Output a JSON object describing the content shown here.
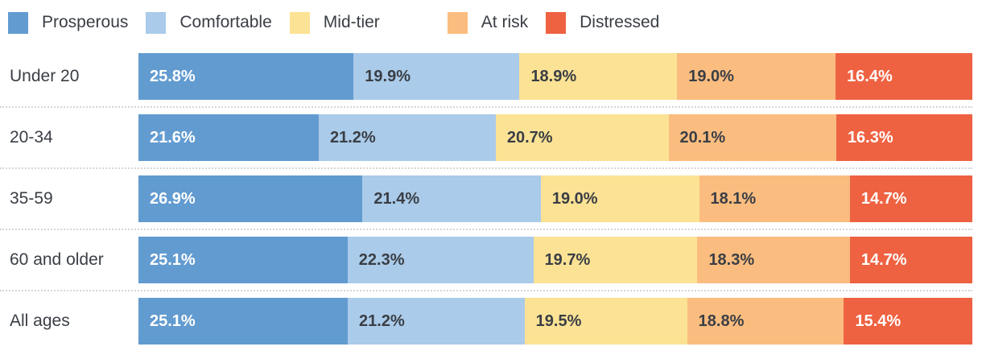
{
  "chart_data": {
    "type": "bar",
    "subtype": "stacked-horizontal-100pct",
    "title": "",
    "xlabel": "",
    "ylabel": "",
    "xlim": [
      0,
      100
    ],
    "grid": false,
    "legend_position": "top",
    "value_format": "one-decimal-percent",
    "categories": [
      "Under 20",
      "20-34",
      "35-59",
      "60 and older",
      "All ages"
    ],
    "series": [
      {
        "name": "Prosperous",
        "color": "#629bd0",
        "label_color": "#ffffff",
        "values": [
          25.8,
          21.6,
          26.9,
          25.1,
          25.1
        ]
      },
      {
        "name": "Comfortable",
        "color": "#aacbe9",
        "label_color": "#3a3e45",
        "values": [
          19.9,
          21.2,
          21.4,
          22.3,
          21.2
        ]
      },
      {
        "name": "Mid-tier",
        "color": "#fce294",
        "label_color": "#3a3e45",
        "values": [
          18.9,
          20.7,
          19.0,
          19.7,
          19.5
        ]
      },
      {
        "name": "At risk",
        "color": "#fbbd7f",
        "label_color": "#3a3e45",
        "values": [
          19.0,
          20.1,
          18.1,
          18.3,
          18.8
        ]
      },
      {
        "name": "Distressed",
        "color": "#ee6242",
        "label_color": "#ffffff",
        "values": [
          16.4,
          16.3,
          14.7,
          14.7,
          15.4
        ]
      }
    ],
    "segment_labels": [
      [
        "25.8%",
        "19.9%",
        "18.9%",
        "19.0%",
        "16.4%"
      ],
      [
        "21.6%",
        "21.2%",
        "20.7%",
        "20.1%",
        "16.3%"
      ],
      [
        "26.9%",
        "21.4%",
        "19.0%",
        "18.1%",
        "14.7%"
      ],
      [
        "25.1%",
        "22.3%",
        "19.7%",
        "18.3%",
        "14.7%"
      ],
      [
        "25.1%",
        "21.2%",
        "19.5%",
        "18.8%",
        "15.4%"
      ]
    ],
    "separator_color": "#d6d6d6",
    "text_color": "#3a3e45"
  }
}
